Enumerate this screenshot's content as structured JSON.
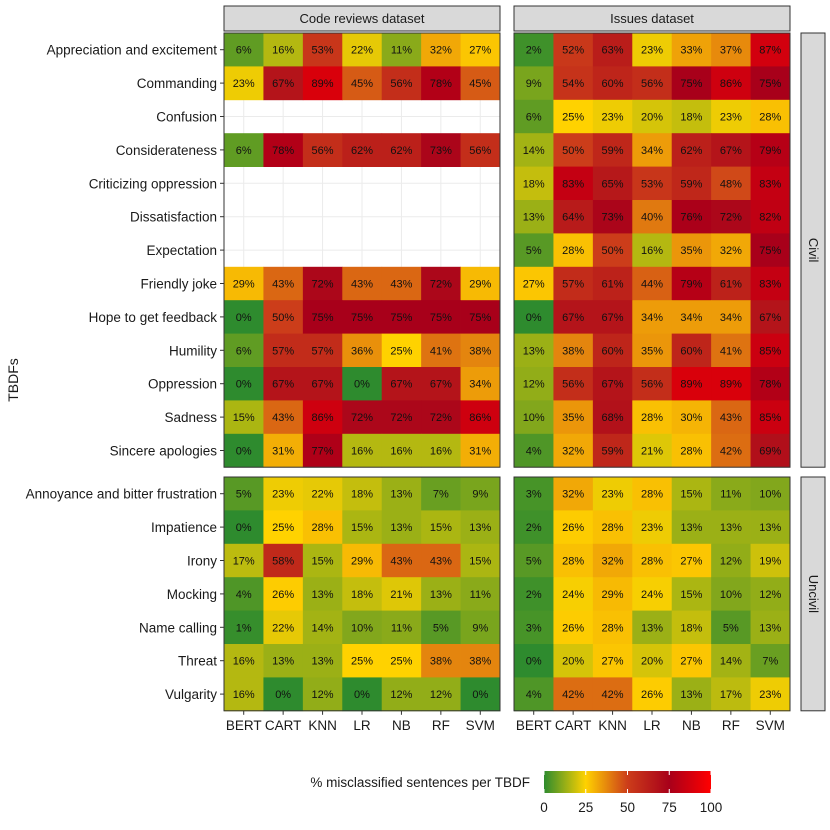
{
  "chart_data": {
    "type": "heatmap",
    "ylabel": "TBDFs",
    "models": [
      "BERT",
      "CART",
      "KNN",
      "LR",
      "NB",
      "RF",
      "SVM"
    ],
    "datasets": [
      "Code reviews dataset",
      "Issues dataset"
    ],
    "groups": [
      {
        "name": "Civil",
        "rows": [
          "Appreciation and excitement",
          "Commanding",
          "Confusion",
          "Considerateness",
          "Criticizing oppression",
          "Dissatisfaction",
          "Expectation",
          "Friendly joke",
          "Hope to get feedback",
          "Humility",
          "Oppression",
          "Sadness",
          "Sincere apologies"
        ],
        "values": {
          "Code reviews dataset": [
            [
              6,
              16,
              53,
              22,
              11,
              32,
              27
            ],
            [
              23,
              67,
              89,
              45,
              56,
              78,
              45
            ],
            null,
            [
              6,
              78,
              56,
              62,
              62,
              73,
              56
            ],
            null,
            null,
            null,
            [
              29,
              43,
              72,
              43,
              43,
              72,
              29
            ],
            [
              0,
              50,
              75,
              75,
              75,
              75,
              75
            ],
            [
              6,
              57,
              57,
              36,
              25,
              41,
              38
            ],
            [
              0,
              67,
              67,
              0,
              67,
              67,
              34
            ],
            [
              15,
              43,
              86,
              72,
              72,
              72,
              86
            ],
            [
              0,
              31,
              77,
              16,
              16,
              16,
              31
            ]
          ],
          "Issues dataset": [
            [
              2,
              52,
              63,
              23,
              33,
              37,
              87
            ],
            [
              9,
              54,
              60,
              56,
              75,
              86,
              75
            ],
            [
              6,
              25,
              23,
              20,
              18,
              23,
              28
            ],
            [
              14,
              50,
              59,
              34,
              62,
              67,
              79
            ],
            [
              18,
              83,
              65,
              53,
              59,
              48,
              83
            ],
            [
              13,
              64,
              73,
              40,
              76,
              72,
              82
            ],
            [
              5,
              28,
              50,
              16,
              35,
              32,
              75
            ],
            [
              27,
              57,
              61,
              44,
              79,
              61,
              83
            ],
            [
              0,
              67,
              67,
              34,
              34,
              34,
              67
            ],
            [
              13,
              38,
              60,
              35,
              60,
              41,
              85
            ],
            [
              12,
              56,
              67,
              56,
              89,
              89,
              78
            ],
            [
              10,
              35,
              68,
              28,
              30,
              43,
              85
            ],
            [
              4,
              32,
              59,
              21,
              28,
              42,
              69
            ]
          ]
        }
      },
      {
        "name": "Uncivil",
        "rows": [
          "Annoyance and bitter frustration",
          "Impatience",
          "Irony",
          "Mocking",
          "Name calling",
          "Threat",
          "Vulgarity"
        ],
        "values": {
          "Code reviews dataset": [
            [
              5,
              23,
              22,
              18,
              13,
              7,
              9
            ],
            [
              0,
              25,
              28,
              15,
              13,
              15,
              13
            ],
            [
              17,
              58,
              15,
              29,
              43,
              43,
              15
            ],
            [
              4,
              26,
              13,
              18,
              21,
              13,
              11
            ],
            [
              1,
              22,
              14,
              10,
              11,
              5,
              9
            ],
            [
              16,
              13,
              13,
              25,
              25,
              38,
              38
            ],
            [
              16,
              0,
              12,
              0,
              12,
              12,
              0
            ]
          ],
          "Issues dataset": [
            [
              3,
              32,
              23,
              28,
              15,
              11,
              10
            ],
            [
              2,
              26,
              28,
              23,
              13,
              13,
              13
            ],
            [
              5,
              28,
              32,
              28,
              27,
              12,
              19
            ],
            [
              2,
              24,
              29,
              24,
              15,
              10,
              12
            ],
            [
              3,
              26,
              28,
              13,
              18,
              5,
              13
            ],
            [
              0,
              20,
              27,
              20,
              27,
              14,
              7
            ],
            [
              4,
              42,
              42,
              26,
              13,
              17,
              23
            ]
          ]
        }
      }
    ],
    "value_suffix": "%",
    "legend": {
      "title": "% misclassified sentences per TBDF",
      "min": 0,
      "max": 100,
      "ticks": [
        0,
        25,
        50,
        75,
        100
      ],
      "colors": [
        "#2e8b2e",
        "#ffd200",
        "#cc3d1a",
        "#a8001a",
        "#ff0000"
      ],
      "position": "bottom"
    }
  }
}
